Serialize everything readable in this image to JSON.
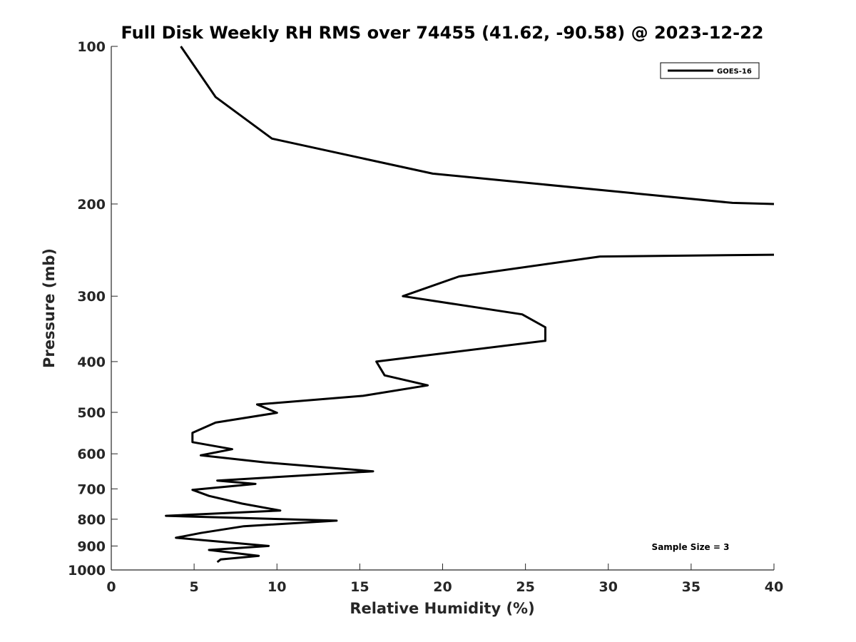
{
  "chart_data": {
    "type": "line",
    "title": "Full Disk Weekly RH RMS over 74455 (41.62, -90.58) @ 2023-12-22",
    "xlabel": "Relative Humidity (%)",
    "ylabel": "Pressure (mb)",
    "xlim": [
      0,
      40
    ],
    "ylim": [
      100,
      1000
    ],
    "y_scale": "log",
    "y_reversed": true,
    "xticks": [
      0,
      5,
      10,
      15,
      20,
      25,
      30,
      35,
      40
    ],
    "xtick_labels": [
      "0",
      "5",
      "10",
      "15",
      "20",
      "25",
      "30",
      "35",
      "40"
    ],
    "yticks": [
      100,
      200,
      300,
      400,
      500,
      600,
      700,
      800,
      900,
      1000
    ],
    "ytick_labels": [
      "100",
      "200",
      "300",
      "400",
      "500",
      "600",
      "700",
      "800",
      "900",
      "1000"
    ],
    "grid": false,
    "legend_position": "top-right",
    "series": [
      {
        "name": "GOES-16",
        "color": "#000000",
        "segments": [
          [
            {
              "x": 4.2,
              "y": 100
            },
            {
              "x": 6.3,
              "y": 125
            },
            {
              "x": 9.7,
              "y": 150
            },
            {
              "x": 19.4,
              "y": 175
            },
            {
              "x": 37.5,
              "y": 199
            },
            {
              "x": 40.0,
              "y": 200
            }
          ],
          [
            {
              "x": 40.0,
              "y": 250
            },
            {
              "x": 29.5,
              "y": 252
            },
            {
              "x": 21.0,
              "y": 275
            },
            {
              "x": 17.6,
              "y": 300
            },
            {
              "x": 24.8,
              "y": 325
            },
            {
              "x": 26.2,
              "y": 344
            },
            {
              "x": 26.2,
              "y": 365
            },
            {
              "x": 16.0,
              "y": 400
            },
            {
              "x": 16.5,
              "y": 425
            },
            {
              "x": 19.1,
              "y": 444
            },
            {
              "x": 15.2,
              "y": 465
            },
            {
              "x": 8.8,
              "y": 483
            },
            {
              "x": 10.0,
              "y": 501
            },
            {
              "x": 6.3,
              "y": 523
            },
            {
              "x": 4.9,
              "y": 547
            },
            {
              "x": 4.9,
              "y": 570
            },
            {
              "x": 7.3,
              "y": 588
            },
            {
              "x": 5.4,
              "y": 604
            },
            {
              "x": 9.3,
              "y": 623
            },
            {
              "x": 15.8,
              "y": 648
            },
            {
              "x": 6.4,
              "y": 675
            },
            {
              "x": 8.7,
              "y": 685
            },
            {
              "x": 4.9,
              "y": 703
            },
            {
              "x": 5.9,
              "y": 722
            },
            {
              "x": 7.9,
              "y": 747
            },
            {
              "x": 10.2,
              "y": 770
            },
            {
              "x": 3.3,
              "y": 788
            },
            {
              "x": 13.6,
              "y": 805
            },
            {
              "x": 8.0,
              "y": 825
            },
            {
              "x": 5.4,
              "y": 850
            },
            {
              "x": 3.9,
              "y": 868
            },
            {
              "x": 9.5,
              "y": 900
            },
            {
              "x": 5.9,
              "y": 916
            },
            {
              "x": 8.9,
              "y": 940
            },
            {
              "x": 6.6,
              "y": 955
            },
            {
              "x": 6.4,
              "y": 966
            }
          ]
        ]
      }
    ],
    "annotations": [
      {
        "text": "Sample Size = 3",
        "position": "bottom-right"
      }
    ]
  }
}
